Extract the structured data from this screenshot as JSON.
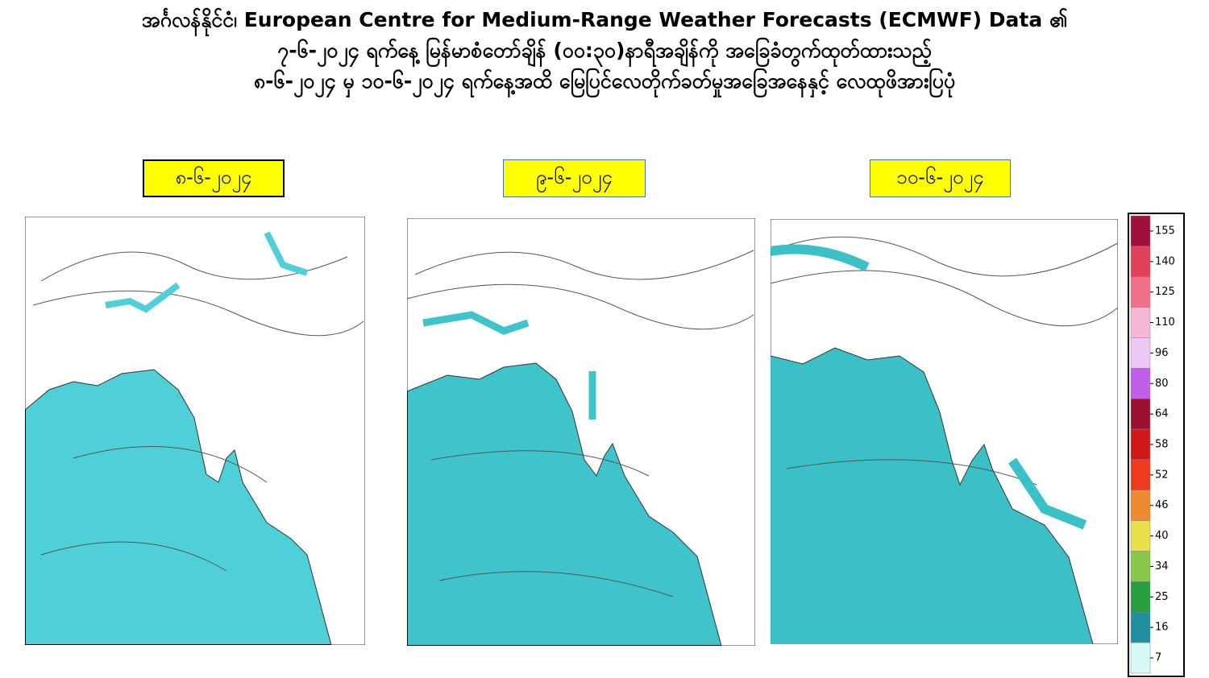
{
  "header": {
    "lines": [
      "အင်္ဂလန်နိုင်ငံ၊ European Centre for Medium-Range Weather Forecasts  (ECMWF) Data ၏",
      "၇-၆-၂၀၂၄ ရက်နေ့ မြန်မာစံတော်ချိန် (၀၀:၃၀)နာရီအချိန်ကို အခြေခံတွက်ထုတ်ထားသည့်",
      "၈-၆-၂၀၂၄ မှ ၁၀-၆-၂၀၂၄ ရက်နေ့အထိ မြေပြင်လေတိုက်ခတ်မှုအခြေအနေနှင့် လေထုဖိအားပြပုံ"
    ]
  },
  "panels": [
    {
      "date": "၈-၆-၂၀၂၄"
    },
    {
      "date": "၉-၆-၂၀၂၄"
    },
    {
      "date": "၁၀-၆-၂၀၂၄"
    }
  ],
  "colorbar": {
    "ticks": [
      155,
      140,
      125,
      110,
      96,
      80,
      64,
      58,
      52,
      46,
      40,
      34,
      25,
      16,
      7
    ],
    "colors": [
      "#a0103c",
      "#e0405a",
      "#f07088",
      "#f4b8d4",
      "#ecc8f4",
      "#c060e8",
      "#9a1030",
      "#d01818",
      "#f03a20",
      "#f08a30",
      "#e8e048",
      "#88c848",
      "#28a040",
      "#2090a0",
      "#d8f8f8"
    ]
  }
}
